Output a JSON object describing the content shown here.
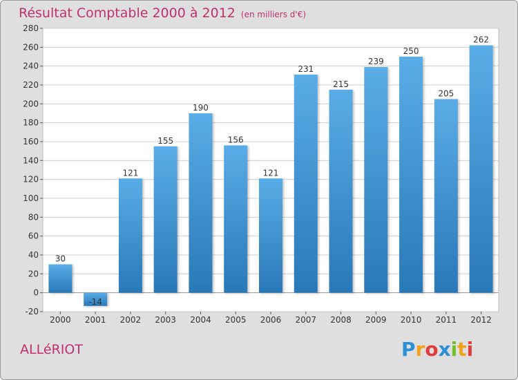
{
  "title": "Résultat Comptable 2000 à 2012",
  "subtitle": "(en milliers d'€)",
  "commune": "ALLéRIOT",
  "logo": {
    "letters": [
      {
        "ch": "P",
        "color": "#2a8fd6"
      },
      {
        "ch": "r",
        "color": "#f0a21a"
      },
      {
        "ch": "o",
        "color": "#e23b3b"
      },
      {
        "ch": "x",
        "color": "#2a8fd6"
      },
      {
        "ch": "i",
        "color": "#6fbf2a"
      },
      {
        "ch": "t",
        "color": "#f0a21a"
      },
      {
        "ch": "i",
        "color": "#e23b3b"
      }
    ]
  },
  "colors": {
    "bar_top": "#5aace6",
    "bar_bottom": "#2a78b8",
    "plot_bg": "#ffffff",
    "grid": "#cfcfcf",
    "accent": "#c0306a"
  },
  "chart_data": {
    "type": "bar",
    "categories": [
      "2000",
      "2001",
      "2002",
      "2003",
      "2004",
      "2005",
      "2006",
      "2007",
      "2008",
      "2009",
      "2010",
      "2011",
      "2012"
    ],
    "values": [
      30,
      -14,
      121,
      155,
      190,
      156,
      121,
      231,
      215,
      239,
      250,
      205,
      262
    ],
    "ylim": [
      -20,
      280
    ],
    "yticks": [
      -20,
      0,
      20,
      40,
      60,
      80,
      100,
      120,
      140,
      160,
      180,
      200,
      220,
      240,
      260,
      280
    ],
    "grid": true,
    "xlabel": "",
    "ylabel": ""
  }
}
